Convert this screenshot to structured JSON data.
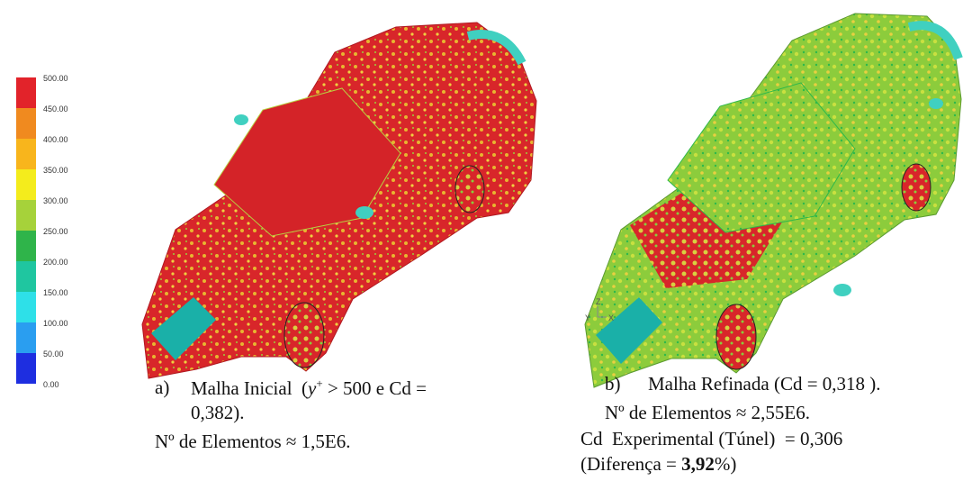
{
  "legend": {
    "labels": [
      "500.00",
      "450.00",
      "400.00",
      "350.00",
      "300.00",
      "250.00",
      "200.00",
      "150.00",
      "100.00",
      "50.00",
      "0.00"
    ]
  },
  "axis_triad": {
    "y": "Y",
    "z": "Z",
    "x": "X"
  },
  "panel_a": {
    "label": "a)",
    "caption": {
      "before": "Malha Inicial  (",
      "var": "y",
      "sup": "+",
      "after": " > 500 e Cd =",
      "line2": "0,382)."
    },
    "elements": "Nº de Elementos ≈ 1,5E6."
  },
  "panel_b": {
    "label": "b)",
    "caption": "Malha Refinada (Cd = 0,318 ).",
    "elements": "Nº de Elementos ≈ 2,55E6.",
    "experimental": "Cd  Experimental (Túnel)  = 0,306",
    "difference": {
      "before": "(Diferença = ",
      "bold": "3,92",
      "after": "%)"
    }
  }
}
